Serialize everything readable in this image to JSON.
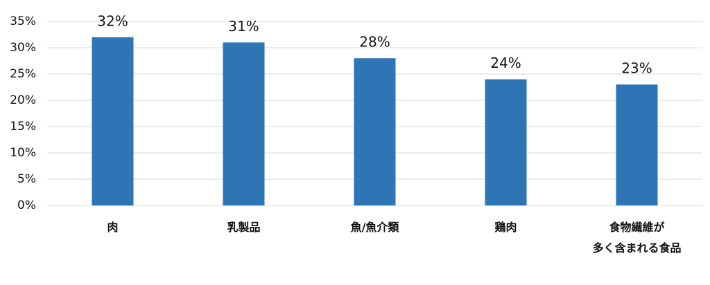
{
  "chart_data": {
    "type": "bar",
    "categories": [
      "肉",
      "乳製品",
      "魚/魚介類",
      "鶏肉",
      "食物繊維が\n多く含まれる食品"
    ],
    "values": [
      32,
      31,
      28,
      24,
      23
    ],
    "value_labels": [
      "32%",
      "31%",
      "28%",
      "24%",
      "23%"
    ],
    "color": "#2e75b6",
    "ylim": [
      0,
      35
    ],
    "yticks": [
      {
        "value": 0,
        "label": "0%"
      },
      {
        "value": 5,
        "label": "5%"
      },
      {
        "value": 10,
        "label": "10%"
      },
      {
        "value": 15,
        "label": "15%"
      },
      {
        "value": 20,
        "label": "20%"
      },
      {
        "value": 25,
        "label": "25%"
      },
      {
        "value": 30,
        "label": "30%"
      },
      {
        "value": 35,
        "label": "35%"
      }
    ],
    "grid": true
  }
}
